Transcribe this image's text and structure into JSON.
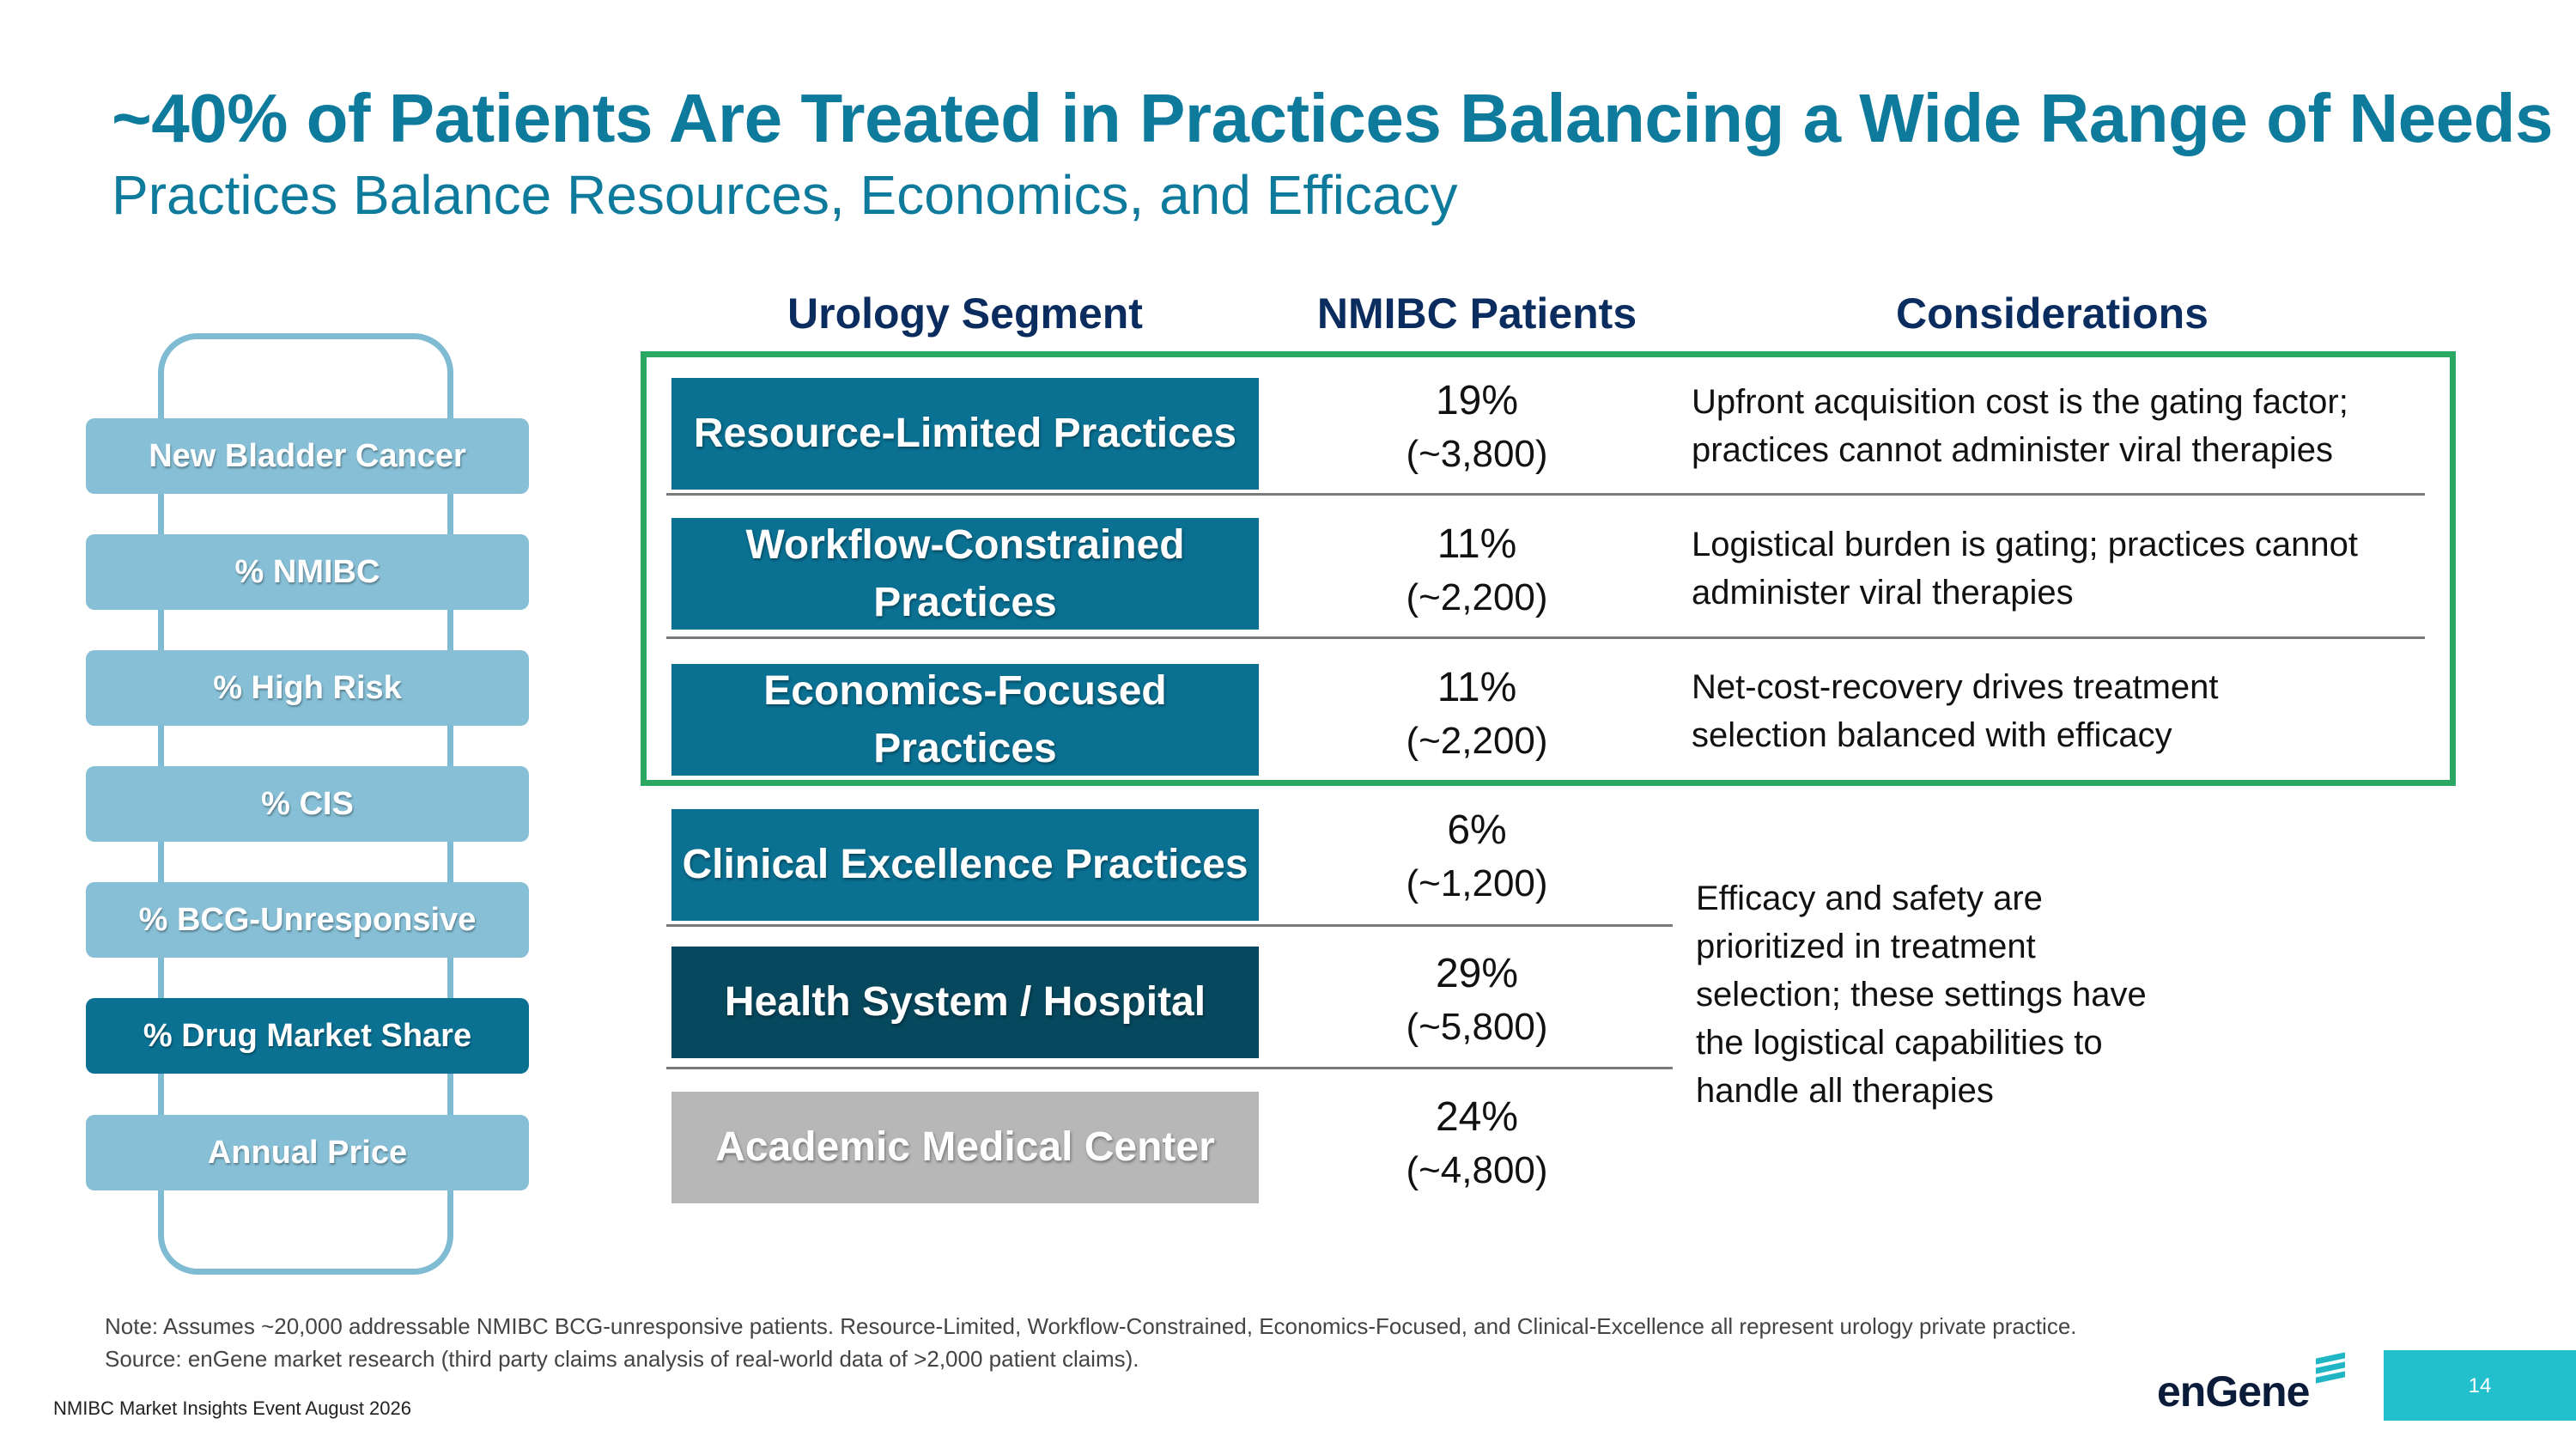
{
  "header": {
    "title": "~40% of Patients Are Treated in Practices Balancing a Wide Range of Needs",
    "subtitle": "Practices Balance Resources, Economics, and Efficacy"
  },
  "table": {
    "headers": [
      "Urology Segment",
      "NMIBC Patients",
      "Considerations"
    ],
    "rows": [
      {
        "segment": "Resource-Limited Practices",
        "pct": "19%",
        "count": "(~3,800)",
        "considerations": [
          "Upfront acquisition cost is the gating factor;",
          "practices cannot administer viral therapies"
        ]
      },
      {
        "segment": [
          "Workflow-Constrained",
          "Practices"
        ],
        "pct": "11%",
        "count": "(~2,200)",
        "considerations": [
          "Logistical burden is gating; practices cannot",
          "administer viral therapies"
        ]
      },
      {
        "segment": [
          "Economics-Focused",
          "Practices"
        ],
        "pct": "11%",
        "count": "(~2,200)",
        "considerations": [
          "Net-cost-recovery drives treatment",
          "selection balanced with efficacy"
        ]
      },
      {
        "segment": "Clinical Excellence Practices",
        "pct": "6%",
        "count": "(~1,200)"
      },
      {
        "segment": "Health System / Hospital",
        "pct": "29%",
        "count": "(~5,800)"
      },
      {
        "segment": "Academic Medical Center",
        "pct": "24%",
        "count": "(~4,800)"
      }
    ],
    "shared_considerations": [
      "Efficacy and safety are",
      "prioritized in treatment",
      "selection; these settings have",
      "the logistical capabilities to",
      "handle all therapies"
    ]
  },
  "funnel": {
    "steps": [
      "New Bladder Cancer",
      "% NMIBC",
      "% High Risk",
      "% CIS",
      "% BCG-Unresponsive",
      "% Drug Market Share",
      "Annual Price"
    ],
    "active_step": "% Drug Market Share"
  },
  "notes": {
    "note": "Note: Assumes ~20,000 addressable NMIBC BCG-unresponsive patients. Resource-Limited, Workflow-Constrained, Economics-Focused, and Clinical-Excellence all represent urology private practice.",
    "source": "Source: enGene market research (third party claims analysis of real-world data of >2,000 patient claims)."
  },
  "footer": {
    "event": "NMIBC Market Insights Event August 2026",
    "logo": "enGene",
    "page": "14"
  },
  "colors": {
    "title": "#0e7a9c",
    "segment_blue": "#0a7193",
    "segment_dark": "#06485e",
    "segment_gray": "#b7b7b7",
    "funnel_light": "#86bfd6",
    "highlight_border": "#2aa863",
    "page_box": "#22bfcc"
  }
}
